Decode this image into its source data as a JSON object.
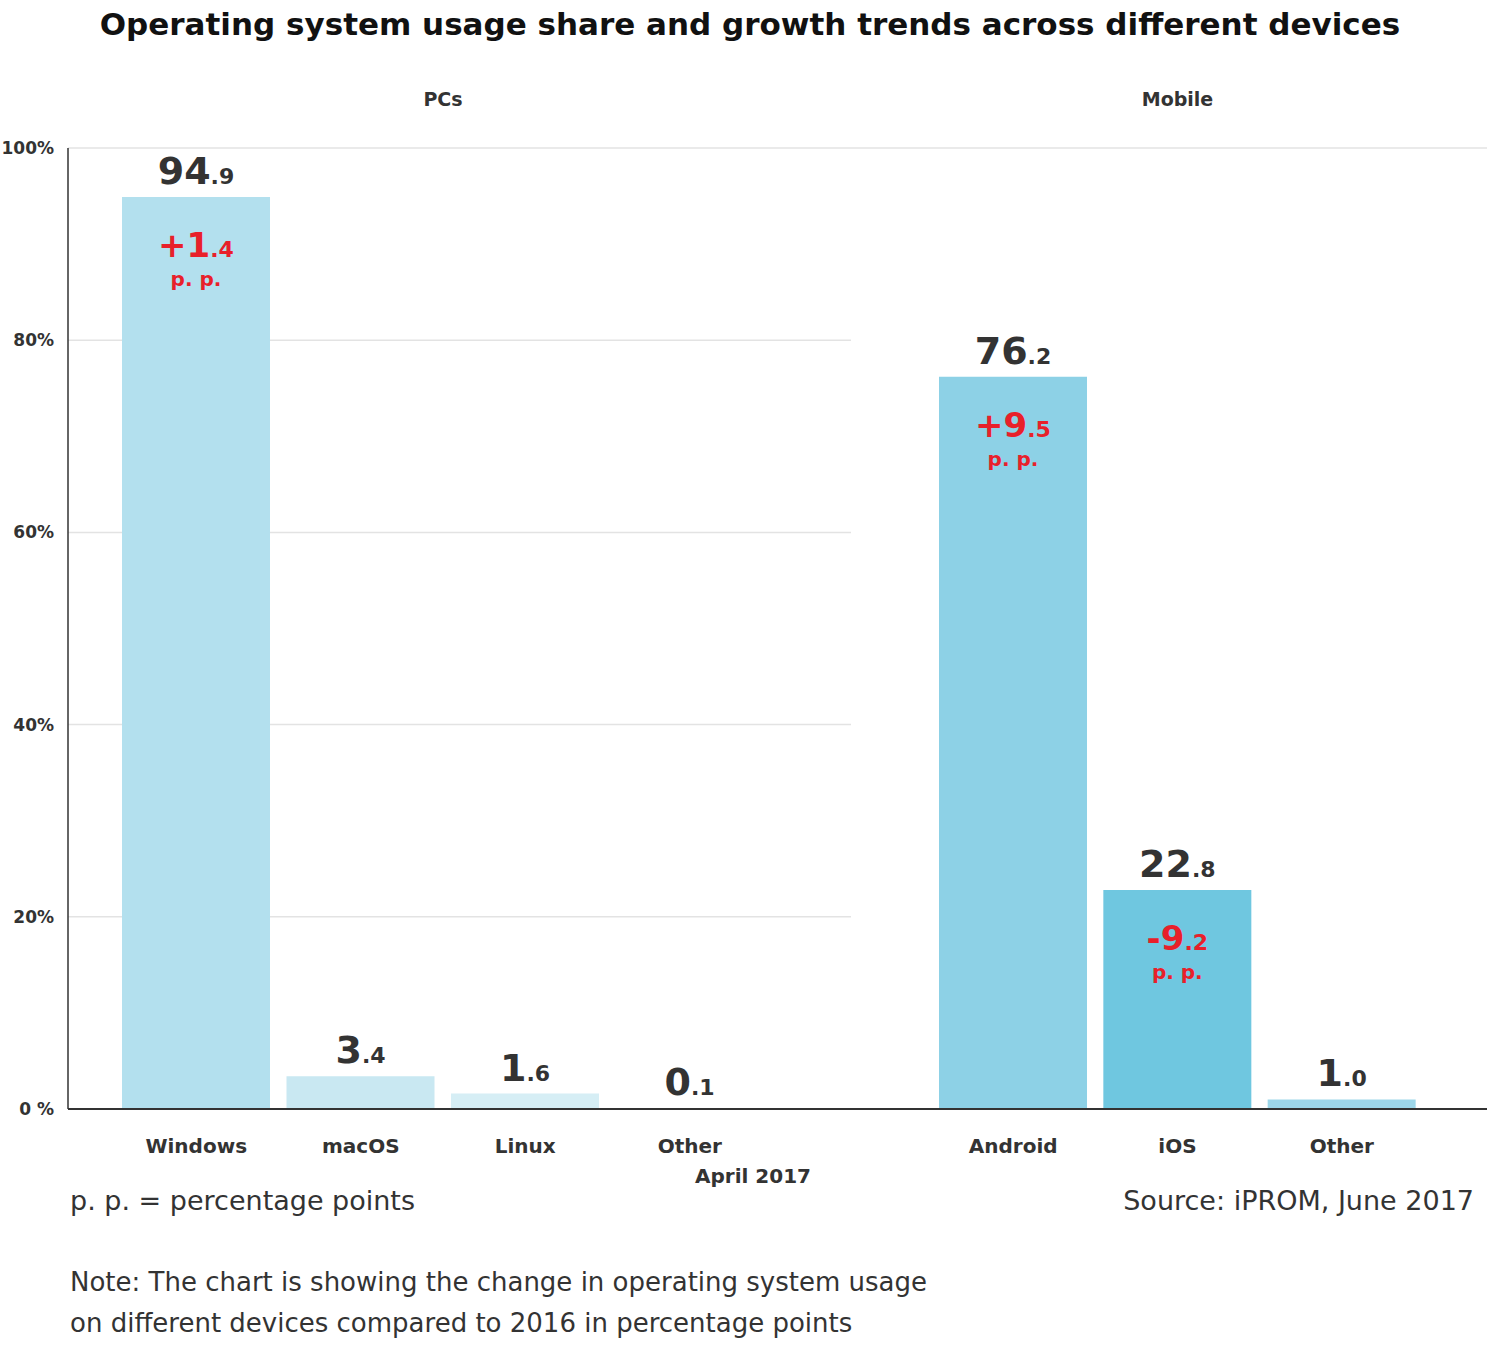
{
  "title": "Operating system usage share and growth trends across different devices",
  "xlabel": "April 2017",
  "legend_note": "p. p. = percentage points",
  "source": "Source: iPROM, June 2017",
  "note": [
    "Note: The chart is showing the change in operating system usage",
    "on different devices compared to 2016 in percentage points"
  ],
  "chart_data": [
    {
      "type": "bar",
      "title": "PCs",
      "categories": [
        "Windows",
        "macOS",
        "Linux",
        "Other"
      ],
      "values": [
        94.9,
        3.4,
        1.6,
        0.1
      ],
      "value_labels": [
        "94.9",
        "3.4",
        "1.6",
        "0.1"
      ],
      "change": [
        1.4,
        null,
        null,
        null
      ],
      "change_labels": [
        "+1.4",
        null,
        null,
        null
      ],
      "change_unit": "p. p.",
      "colors": [
        "#b3e0ee",
        "#c9e8f2",
        "#d6eef5",
        "#d6eef5"
      ],
      "ylim": [
        0,
        100
      ],
      "yticks": [
        {
          "value": 0,
          "label": "0 %"
        },
        {
          "value": 20,
          "label": "20%"
        },
        {
          "value": 40,
          "label": "40%"
        },
        {
          "value": 60,
          "label": "60%"
        },
        {
          "value": 80,
          "label": "80%"
        },
        {
          "value": 100,
          "label": "100%"
        }
      ],
      "grid": true,
      "data_labels": true
    },
    {
      "type": "bar",
      "title": "Mobile",
      "categories": [
        "Android",
        "iOS",
        "Other"
      ],
      "values": [
        76.2,
        22.8,
        1.0
      ],
      "value_labels": [
        "76.2",
        "22.8",
        "1.0"
      ],
      "change": [
        9.5,
        -9.2,
        null
      ],
      "change_labels": [
        "+9.5",
        "-9.2",
        null
      ],
      "change_unit": "p. p.",
      "colors": [
        "#8dd1e6",
        "#6fc7e0",
        "#9dd7ea"
      ],
      "ylim": [
        0,
        100
      ],
      "yticks": [
        {
          "value": 0,
          "label": "0 %"
        },
        {
          "value": 20,
          "label": "20%"
        },
        {
          "value": 40,
          "label": "40%"
        },
        {
          "value": 60,
          "label": "60%"
        },
        {
          "value": 80,
          "label": "80%"
        },
        {
          "value": 100,
          "label": "100%"
        }
      ],
      "grid": true,
      "data_labels": true,
      "tick_labels": "x"
    }
  ]
}
